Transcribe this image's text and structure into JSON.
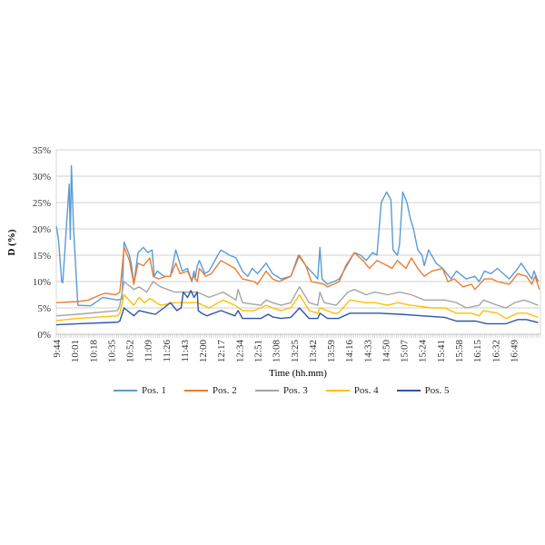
{
  "chart_data": {
    "type": "line",
    "title": "",
    "xlabel": "Time (hh.mm)",
    "ylabel": "D (%)",
    "ylim": [
      0,
      35
    ],
    "yticks": [
      "0%",
      "5%",
      "10%",
      "15%",
      "20%",
      "25%",
      "30%",
      "35%"
    ],
    "x_unit": "minutes since 9:44",
    "xlim": [
      0,
      450
    ],
    "xticks": [
      "9:44",
      "10:01",
      "10:18",
      "10:35",
      "10:52",
      "11:09",
      "11:26",
      "11:43",
      "12:00",
      "12:17",
      "12:34",
      "12:51",
      "13:08",
      "13:25",
      "13:42",
      "13:59",
      "14:16",
      "14:33",
      "14:50",
      "15:07",
      "15:24",
      "15:41",
      "15:58",
      "16:15",
      "16:32",
      "16:49"
    ],
    "xtick_step_minutes": 17,
    "grid": true,
    "legend_position": "bottom",
    "series": [
      {
        "name": "Pos. 1",
        "color": "#5B9BD5",
        "points": [
          [
            0,
            20.5
          ],
          [
            2,
            18
          ],
          [
            5,
            10
          ],
          [
            6,
            9.8
          ],
          [
            12,
            28.5
          ],
          [
            13,
            18
          ],
          [
            14,
            32
          ],
          [
            16,
            20
          ],
          [
            20,
            5.5
          ],
          [
            32,
            5.4
          ],
          [
            43,
            7
          ],
          [
            57,
            6.5
          ],
          [
            61,
            6.7
          ],
          [
            63,
            17.5
          ],
          [
            68,
            15
          ],
          [
            70,
            13
          ],
          [
            72,
            9.5
          ],
          [
            76,
            15.5
          ],
          [
            81,
            16.5
          ],
          [
            85,
            15.5
          ],
          [
            89,
            16
          ],
          [
            91,
            11
          ],
          [
            94,
            12
          ],
          [
            100,
            11
          ],
          [
            106,
            11
          ],
          [
            111,
            16
          ],
          [
            117,
            12
          ],
          [
            122,
            12.5
          ],
          [
            126,
            10
          ],
          [
            128,
            12
          ],
          [
            129,
            10.5
          ],
          [
            131,
            13
          ],
          [
            133,
            14
          ],
          [
            138,
            11.5
          ],
          [
            142,
            12
          ],
          [
            150,
            15
          ],
          [
            153,
            16
          ],
          [
            161,
            15
          ],
          [
            167,
            14.5
          ],
          [
            173,
            12
          ],
          [
            178,
            11
          ],
          [
            182,
            12.5
          ],
          [
            187,
            11.5
          ],
          [
            195,
            13.5
          ],
          [
            201,
            11.5
          ],
          [
            209,
            10.5
          ],
          [
            218,
            11
          ],
          [
            225,
            15
          ],
          [
            232,
            13
          ],
          [
            241,
            11
          ],
          [
            243,
            10.5
          ],
          [
            245,
            16.5
          ],
          [
            247,
            10.5
          ],
          [
            252,
            9.5
          ],
          [
            258,
            10
          ],
          [
            263,
            10.5
          ],
          [
            270,
            13
          ],
          [
            277,
            15.5
          ],
          [
            283,
            15
          ],
          [
            288,
            14
          ],
          [
            294,
            15.5
          ],
          [
            298,
            15
          ],
          [
            302,
            25
          ],
          [
            307,
            27
          ],
          [
            311,
            25.5
          ],
          [
            313,
            16
          ],
          [
            317,
            15
          ],
          [
            319,
            17
          ],
          [
            322,
            27
          ],
          [
            326,
            25
          ],
          [
            329,
            22
          ],
          [
            332,
            20
          ],
          [
            336,
            16
          ],
          [
            340,
            15
          ],
          [
            342,
            13
          ],
          [
            346,
            16
          ],
          [
            353,
            13.5
          ],
          [
            359,
            12.5
          ],
          [
            367,
            10.5
          ],
          [
            372,
            12
          ],
          [
            381,
            10.5
          ],
          [
            389,
            11
          ],
          [
            393,
            10
          ],
          [
            398,
            12
          ],
          [
            404,
            11.5
          ],
          [
            410,
            12.5
          ],
          [
            421,
            10.5
          ],
          [
            429,
            12.5
          ],
          [
            432,
            13.5
          ],
          [
            437,
            12
          ],
          [
            442,
            10.5
          ],
          [
            444,
            12
          ],
          [
            448,
            10
          ]
        ]
      },
      {
        "name": "Pos. 2",
        "color": "#ED7D31",
        "points": [
          [
            0,
            6
          ],
          [
            20,
            6.2
          ],
          [
            30,
            6.5
          ],
          [
            41,
            7.5
          ],
          [
            46,
            7.8
          ],
          [
            55,
            7.5
          ],
          [
            59,
            8
          ],
          [
            63,
            16.5
          ],
          [
            68,
            14
          ],
          [
            72,
            9.5
          ],
          [
            76,
            13.5
          ],
          [
            81,
            13
          ],
          [
            87,
            14.5
          ],
          [
            90,
            11
          ],
          [
            95,
            10.5
          ],
          [
            102,
            11
          ],
          [
            106,
            11
          ],
          [
            111,
            13.5
          ],
          [
            115,
            11.5
          ],
          [
            122,
            12
          ],
          [
            125,
            10.5
          ],
          [
            128,
            11
          ],
          [
            131,
            10
          ],
          [
            133,
            12.5
          ],
          [
            139,
            11
          ],
          [
            144,
            11.5
          ],
          [
            153,
            14
          ],
          [
            166,
            12.5
          ],
          [
            173,
            10.5
          ],
          [
            184,
            10
          ],
          [
            187,
            9.5
          ],
          [
            195,
            12
          ],
          [
            201,
            10.5
          ],
          [
            207,
            10
          ],
          [
            218,
            11
          ],
          [
            226,
            15
          ],
          [
            232,
            13
          ],
          [
            237,
            10
          ],
          [
            249,
            9.5
          ],
          [
            252,
            9
          ],
          [
            258,
            9.5
          ],
          [
            263,
            10
          ],
          [
            269,
            13
          ],
          [
            277,
            15.5
          ],
          [
            285,
            14
          ],
          [
            291,
            12.5
          ],
          [
            298,
            14
          ],
          [
            308,
            13
          ],
          [
            312,
            12.5
          ],
          [
            317,
            14
          ],
          [
            325,
            12.5
          ],
          [
            330,
            14.5
          ],
          [
            336,
            12.5
          ],
          [
            342,
            11
          ],
          [
            349,
            12
          ],
          [
            359,
            12.5
          ],
          [
            364,
            10
          ],
          [
            370,
            10.5
          ],
          [
            378,
            9
          ],
          [
            386,
            9.5
          ],
          [
            389,
            8.5
          ],
          [
            398,
            10.5
          ],
          [
            405,
            10.5
          ],
          [
            410,
            10
          ],
          [
            421,
            9.5
          ],
          [
            429,
            11.5
          ],
          [
            437,
            11
          ],
          [
            442,
            9.5
          ],
          [
            445,
            11
          ],
          [
            449,
            8.5
          ]
        ]
      },
      {
        "name": "Pos. 3",
        "color": "#A5A5A5",
        "points": [
          [
            0,
            3.5
          ],
          [
            20,
            3.8
          ],
          [
            57,
            4.5
          ],
          [
            59,
            5.5
          ],
          [
            63,
            10
          ],
          [
            72,
            8.5
          ],
          [
            77,
            9
          ],
          [
            84,
            8
          ],
          [
            90,
            10
          ],
          [
            97,
            9
          ],
          [
            110,
            8
          ],
          [
            131,
            8
          ],
          [
            142,
            7
          ],
          [
            155,
            8
          ],
          [
            167,
            6.5
          ],
          [
            169,
            8.5
          ],
          [
            173,
            6
          ],
          [
            190,
            5.5
          ],
          [
            195,
            6.5
          ],
          [
            201,
            6
          ],
          [
            209,
            5.5
          ],
          [
            218,
            6
          ],
          [
            226,
            9
          ],
          [
            235,
            6
          ],
          [
            243,
            5.5
          ],
          [
            245,
            8
          ],
          [
            249,
            6
          ],
          [
            260,
            5.5
          ],
          [
            271,
            8
          ],
          [
            277,
            8.5
          ],
          [
            288,
            7.5
          ],
          [
            296,
            8
          ],
          [
            308,
            7.5
          ],
          [
            319,
            8
          ],
          [
            330,
            7.5
          ],
          [
            342,
            6.5
          ],
          [
            361,
            6.5
          ],
          [
            372,
            6
          ],
          [
            381,
            5
          ],
          [
            393,
            5.5
          ],
          [
            397,
            6.5
          ],
          [
            410,
            5.5
          ],
          [
            418,
            5
          ],
          [
            426,
            6
          ],
          [
            435,
            6.5
          ],
          [
            448,
            5.5
          ]
        ]
      },
      {
        "name": "Pos. 4",
        "color": "#FFC000",
        "points": [
          [
            0,
            2.6
          ],
          [
            20,
            3
          ],
          [
            57,
            3.5
          ],
          [
            59,
            4
          ],
          [
            63,
            7.5
          ],
          [
            72,
            5.5
          ],
          [
            77,
            7
          ],
          [
            82,
            6
          ],
          [
            87,
            6.8
          ],
          [
            97,
            5.5
          ],
          [
            110,
            6
          ],
          [
            131,
            6
          ],
          [
            142,
            5
          ],
          [
            155,
            6.5
          ],
          [
            166,
            5.5
          ],
          [
            173,
            4.5
          ],
          [
            184,
            4.5
          ],
          [
            195,
            5.5
          ],
          [
            201,
            5
          ],
          [
            209,
            4.5
          ],
          [
            218,
            5
          ],
          [
            226,
            7.5
          ],
          [
            235,
            4.5
          ],
          [
            243,
            4
          ],
          [
            245,
            5
          ],
          [
            258,
            4
          ],
          [
            262,
            4
          ],
          [
            273,
            6.5
          ],
          [
            288,
            6
          ],
          [
            296,
            6
          ],
          [
            308,
            5.5
          ],
          [
            317,
            6
          ],
          [
            330,
            5.5
          ],
          [
            349,
            5
          ],
          [
            361,
            5
          ],
          [
            372,
            4
          ],
          [
            386,
            4
          ],
          [
            393,
            3.5
          ],
          [
            397,
            4.5
          ],
          [
            410,
            4
          ],
          [
            418,
            3
          ],
          [
            429,
            4
          ],
          [
            437,
            4
          ],
          [
            448,
            3.2
          ]
        ]
      },
      {
        "name": "Pos. 5",
        "color": "#2F55A8",
        "points": [
          [
            0,
            1.8
          ],
          [
            20,
            2
          ],
          [
            57,
            2.3
          ],
          [
            59,
            2.5
          ],
          [
            63,
            5
          ],
          [
            72,
            3.5
          ],
          [
            77,
            4.5
          ],
          [
            87,
            4
          ],
          [
            92,
            3.8
          ],
          [
            100,
            5
          ],
          [
            106,
            6
          ],
          [
            112,
            4.5
          ],
          [
            116,
            5
          ],
          [
            118,
            8
          ],
          [
            122,
            7
          ],
          [
            125,
            8.3
          ],
          [
            128,
            7
          ],
          [
            131,
            8
          ],
          [
            132,
            4.5
          ],
          [
            135,
            4
          ],
          [
            140,
            3.5
          ],
          [
            153,
            4.5
          ],
          [
            166,
            3.5
          ],
          [
            169,
            4.5
          ],
          [
            173,
            3
          ],
          [
            190,
            3
          ],
          [
            197,
            3.8
          ],
          [
            201,
            3.3
          ],
          [
            209,
            3
          ],
          [
            218,
            3.2
          ],
          [
            226,
            5
          ],
          [
            235,
            3
          ],
          [
            243,
            3
          ],
          [
            245,
            4
          ],
          [
            252,
            3
          ],
          [
            262,
            3
          ],
          [
            273,
            4
          ],
          [
            288,
            4
          ],
          [
            300,
            4
          ],
          [
            320,
            3.8
          ],
          [
            340,
            3.5
          ],
          [
            361,
            3.2
          ],
          [
            372,
            2.5
          ],
          [
            390,
            2.5
          ],
          [
            400,
            2
          ],
          [
            418,
            2
          ],
          [
            429,
            2.8
          ],
          [
            437,
            2.8
          ],
          [
            448,
            2.2
          ]
        ]
      }
    ]
  }
}
